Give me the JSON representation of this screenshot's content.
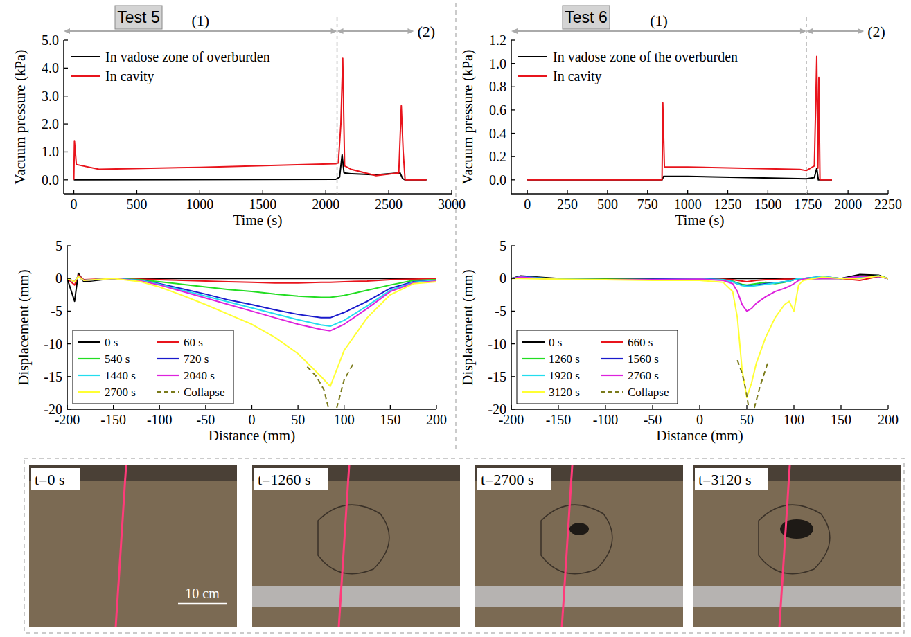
{
  "chart_data": [
    {
      "type": "line",
      "title": "Test 5",
      "x_label": "Time (s)",
      "y_label": "Vacuum pressure (kPa)",
      "xlim": [
        -80,
        3000
      ],
      "xticks": [
        0,
        500,
        1000,
        1500,
        2000,
        2500,
        3000
      ],
      "ylim": [
        -0.5,
        5.0
      ],
      "yticks": [
        {
          "value": 0,
          "label": "0.0"
        },
        {
          "value": 1,
          "label": "1.0"
        },
        {
          "value": 2,
          "label": "2.0"
        },
        {
          "value": 3,
          "label": "3.0"
        },
        {
          "value": 4,
          "label": "4.0"
        },
        {
          "value": 5,
          "label": "5.0"
        }
      ],
      "legend": "upper left",
      "grid": false,
      "annotations": [
        {
          "text": "(1)",
          "x0": -80,
          "x1": 2090
        },
        {
          "text": "(2)",
          "x0": 2090,
          "x1": 2700
        }
      ],
      "series": [
        {
          "name": "In vadose zone of overburden",
          "color": "#000000",
          "line_style": "solid",
          "x": [
            0,
            2080,
            2110,
            2130,
            2145,
            2200,
            2400,
            2590,
            2610,
            2630,
            2800
          ],
          "values": [
            0,
            0.02,
            0.1,
            0.9,
            0.25,
            0.22,
            0.18,
            0.25,
            0.05,
            0,
            0
          ]
        },
        {
          "name": "In cavity",
          "color": "#e8141c",
          "line_style": "solid",
          "x": [
            0,
            5,
            20,
            200,
            1000,
            2080,
            2100,
            2120,
            2135,
            2150,
            2200,
            2400,
            2580,
            2600,
            2615,
            2630,
            2800
          ],
          "values": [
            0,
            1.4,
            0.55,
            0.38,
            0.45,
            0.58,
            0.6,
            2.0,
            4.35,
            0.5,
            0.38,
            0.15,
            0.25,
            2.65,
            1.0,
            0,
            0
          ]
        }
      ]
    },
    {
      "type": "line",
      "title": "Test 6",
      "x_label": "Time (s)",
      "y_label": "Vacuum pressure (kPa)",
      "xlim": [
        -100,
        2250
      ],
      "xticks": [
        0,
        250,
        500,
        750,
        1000,
        1250,
        1500,
        1750,
        2000,
        2250
      ],
      "ylim": [
        -0.12,
        1.2
      ],
      "yticks": [
        {
          "value": 0,
          "label": "0.0"
        },
        {
          "value": 0.2,
          "label": "0.2"
        },
        {
          "value": 0.4,
          "label": "0.4"
        },
        {
          "value": 0.6,
          "label": "0.6"
        },
        {
          "value": 0.8,
          "label": "0.8"
        },
        {
          "value": 1.0,
          "label": "1.0"
        },
        {
          "value": 1.2,
          "label": "1.2"
        }
      ],
      "legend": "upper left",
      "grid": false,
      "annotations": [
        {
          "text": "(1)",
          "x0": -100,
          "x1": 1740
        },
        {
          "text": "(2)",
          "x0": 1740,
          "x1": 2100
        }
      ],
      "series": [
        {
          "name": "In vadose zone of the overburden",
          "color": "#000000",
          "line_style": "solid",
          "x": [
            0,
            840,
            850,
            1000,
            1740,
            1790,
            1805,
            1815,
            1900
          ],
          "values": [
            0,
            0,
            0.03,
            0.03,
            0.01,
            0.02,
            0.1,
            0,
            0
          ]
        },
        {
          "name": "In cavity",
          "color": "#e8141c",
          "line_style": "solid",
          "x": [
            0,
            840,
            845,
            855,
            1000,
            1700,
            1740,
            1790,
            1805,
            1812,
            1818,
            1825,
            1900
          ],
          "values": [
            0,
            0,
            0.66,
            0.11,
            0.11,
            0.09,
            0.08,
            0.12,
            1.06,
            0.1,
            0.88,
            0,
            0
          ]
        }
      ]
    },
    {
      "type": "line",
      "x_label": "Distance (mm)",
      "y_label": "Displacement (mm)",
      "xlim": [
        -200,
        200
      ],
      "xticks": [
        -200,
        -150,
        -100,
        -50,
        0,
        50,
        100,
        150,
        200
      ],
      "ylim": [
        -20,
        5
      ],
      "yticks": [
        -20,
        -15,
        -10,
        -5,
        0,
        5
      ],
      "legend": "lower left",
      "grid": false,
      "x": [
        -200,
        -192,
        -188,
        -182,
        -150,
        -120,
        -100,
        -75,
        -50,
        -25,
        0,
        25,
        50,
        75,
        85,
        100,
        125,
        150,
        175,
        200
      ],
      "series": [
        {
          "name": "0 s",
          "color": "#000000",
          "line_style": "solid",
          "values": [
            0,
            -3.5,
            0.8,
            -0.5,
            0,
            0,
            0,
            0,
            0,
            0,
            0,
            0,
            0,
            0,
            0,
            0,
            0,
            0,
            0,
            0
          ]
        },
        {
          "name": "60 s",
          "color": "#e8141c",
          "line_style": "solid",
          "values": [
            0,
            -1,
            0.5,
            -0.2,
            0,
            -0.1,
            -0.2,
            -0.3,
            -0.4,
            -0.5,
            -0.6,
            -0.7,
            -0.7,
            -0.6,
            -0.6,
            -0.5,
            -0.4,
            -0.2,
            -0.1,
            0
          ]
        },
        {
          "name": "540 s",
          "color": "#22dd22",
          "line_style": "solid",
          "values": [
            0,
            -0.5,
            0.3,
            -0.3,
            0,
            -0.2,
            -0.5,
            -0.9,
            -1.3,
            -1.7,
            -2.0,
            -2.4,
            -2.7,
            -2.9,
            -2.9,
            -2.6,
            -1.8,
            -1.0,
            -0.3,
            -0.2
          ]
        },
        {
          "name": "720 s",
          "color": "#1a1acc",
          "line_style": "solid",
          "values": [
            0,
            -0.5,
            0.3,
            -0.3,
            0,
            -0.3,
            -0.8,
            -1.6,
            -2.4,
            -3.3,
            -4.0,
            -4.8,
            -5.5,
            -6.0,
            -6.0,
            -5.2,
            -3.5,
            -1.5,
            -0.5,
            -0.3
          ]
        },
        {
          "name": "1440 s",
          "color": "#22ddee",
          "line_style": "solid",
          "values": [
            0,
            -0.5,
            0.3,
            -0.3,
            0,
            -0.3,
            -0.9,
            -1.8,
            -2.7,
            -3.6,
            -4.5,
            -5.4,
            -6.3,
            -7.1,
            -7.3,
            -6.4,
            -4.2,
            -1.8,
            -0.6,
            -0.3
          ]
        },
        {
          "name": "2040 s",
          "color": "#dd22dd",
          "line_style": "solid",
          "values": [
            0,
            -0.5,
            0.3,
            -0.3,
            0,
            -0.4,
            -1.0,
            -2.0,
            -3.0,
            -4.0,
            -5.0,
            -6.0,
            -7.0,
            -7.8,
            -8.0,
            -7.0,
            -4.6,
            -2.0,
            -0.7,
            -0.4
          ]
        },
        {
          "name": "2700 s",
          "color": "#ffff33",
          "line_style": "solid",
          "values": [
            0,
            -0.5,
            0.3,
            -0.3,
            0,
            -0.5,
            -1.3,
            -2.6,
            -4.0,
            -5.5,
            -7.0,
            -9.0,
            -11.5,
            -15.0,
            -16.5,
            -11.0,
            -6.0,
            -2.5,
            -0.8,
            -0.5
          ]
        },
        {
          "name": "Collapse",
          "color": "#7a7a1a",
          "line_style": "dashed",
          "x": [
            60,
            70,
            78,
            83,
            86,
            92,
            100,
            110
          ],
          "values": [
            -13.5,
            -15,
            -17,
            -19.8,
            null,
            -19.8,
            -15.5,
            -13
          ]
        }
      ]
    },
    {
      "type": "line",
      "x_label": "Distance (mm)",
      "y_label": "Displacement (mm)",
      "xlim": [
        -200,
        200
      ],
      "xticks": [
        -200,
        -150,
        -100,
        -50,
        0,
        50,
        100,
        150,
        200
      ],
      "ylim": [
        -20,
        5
      ],
      "yticks": [
        -20,
        -15,
        -10,
        -5,
        0,
        5
      ],
      "legend": "lower left",
      "grid": false,
      "x": [
        -200,
        -190,
        -150,
        -100,
        -50,
        0,
        25,
        35,
        40,
        45,
        50,
        55,
        60,
        70,
        80,
        90,
        95,
        100,
        105,
        110,
        130,
        150,
        170,
        190,
        200
      ],
      "series": [
        {
          "name": "0 s",
          "color": "#000000",
          "line_style": "solid",
          "values": [
            0,
            0.4,
            0,
            0,
            0,
            0,
            0,
            0,
            0,
            0,
            0,
            0,
            0,
            0,
            0,
            0,
            0,
            0,
            0,
            0,
            0,
            0,
            0.6,
            0.5,
            0
          ]
        },
        {
          "name": "660 s",
          "color": "#e8141c",
          "line_style": "solid",
          "values": [
            0,
            0.2,
            -0.1,
            -0.1,
            -0.1,
            0,
            -0.1,
            -0.2,
            -0.3,
            -0.4,
            -0.5,
            -0.4,
            -0.3,
            -0.2,
            -0.2,
            -0.1,
            -0.1,
            -0.1,
            0,
            0,
            0.2,
            0,
            -0.3,
            0.3,
            0
          ]
        },
        {
          "name": "1260 s",
          "color": "#22dd22",
          "line_style": "solid",
          "values": [
            0,
            0.3,
            -0.1,
            -0.1,
            -0.1,
            0,
            -0.2,
            -0.4,
            -0.7,
            -0.9,
            -1.0,
            -0.9,
            -0.8,
            -0.6,
            -0.8,
            -0.6,
            -0.4,
            -0.2,
            0,
            0,
            0.2,
            0,
            0.2,
            0.4,
            0
          ]
        },
        {
          "name": "1560 s",
          "color": "#1a1acc",
          "line_style": "solid",
          "values": [
            0,
            0.3,
            -0.1,
            -0.2,
            -0.1,
            0,
            -0.2,
            -0.5,
            -0.8,
            -1.0,
            -1.1,
            -1.1,
            -1.0,
            -0.8,
            -0.7,
            -0.5,
            -0.4,
            -0.2,
            0,
            0,
            0.3,
            0,
            0.3,
            0.3,
            0
          ]
        },
        {
          "name": "1920 s",
          "color": "#22ddee",
          "line_style": "solid",
          "values": [
            0,
            0.2,
            -0.1,
            -0.2,
            -0.2,
            -0.1,
            -0.2,
            -0.5,
            -0.8,
            -1.1,
            -1.2,
            -1.2,
            -1.1,
            -0.9,
            -0.7,
            -0.5,
            -0.4,
            -0.2,
            0,
            0,
            0.3,
            0,
            0.2,
            0.4,
            0
          ]
        },
        {
          "name": "2760 s",
          "color": "#dd22dd",
          "line_style": "solid",
          "values": [
            0,
            0.2,
            -0.2,
            -0.2,
            -0.2,
            -0.1,
            -0.3,
            -0.8,
            -2.0,
            -4.0,
            -5.0,
            -4.6,
            -3.8,
            -2.8,
            -2.0,
            -1.5,
            -1.2,
            -0.8,
            -0.3,
            -0.1,
            0,
            0,
            0.3,
            0.3,
            0
          ]
        },
        {
          "name": "3120 s",
          "color": "#ffff33",
          "line_style": "solid",
          "values": [
            0,
            0,
            -0.1,
            -0.2,
            -0.3,
            -0.3,
            -0.6,
            -2.0,
            -6.0,
            -14.0,
            -18.2,
            -16.0,
            -13.0,
            -9.0,
            -6.0,
            -4.0,
            -3.5,
            -5.0,
            -1.0,
            -0.3,
            0.2,
            0,
            0,
            0.4,
            0
          ]
        },
        {
          "name": "Collapse",
          "color": "#7a7a1a",
          "line_style": "dashed",
          "x": [
            40,
            45,
            49,
            52,
            55,
            58,
            64,
            72
          ],
          "values": [
            -12.5,
            -14.5,
            -17,
            -19.8,
            null,
            -19.8,
            -16.5,
            -13
          ]
        }
      ]
    }
  ],
  "photos": {
    "frames": [
      {
        "label": "t=0 s"
      },
      {
        "label": "t=1260 s"
      },
      {
        "label": "t=2700 s"
      },
      {
        "label": "t=3120 s"
      }
    ],
    "scale_bar": "10 cm"
  }
}
